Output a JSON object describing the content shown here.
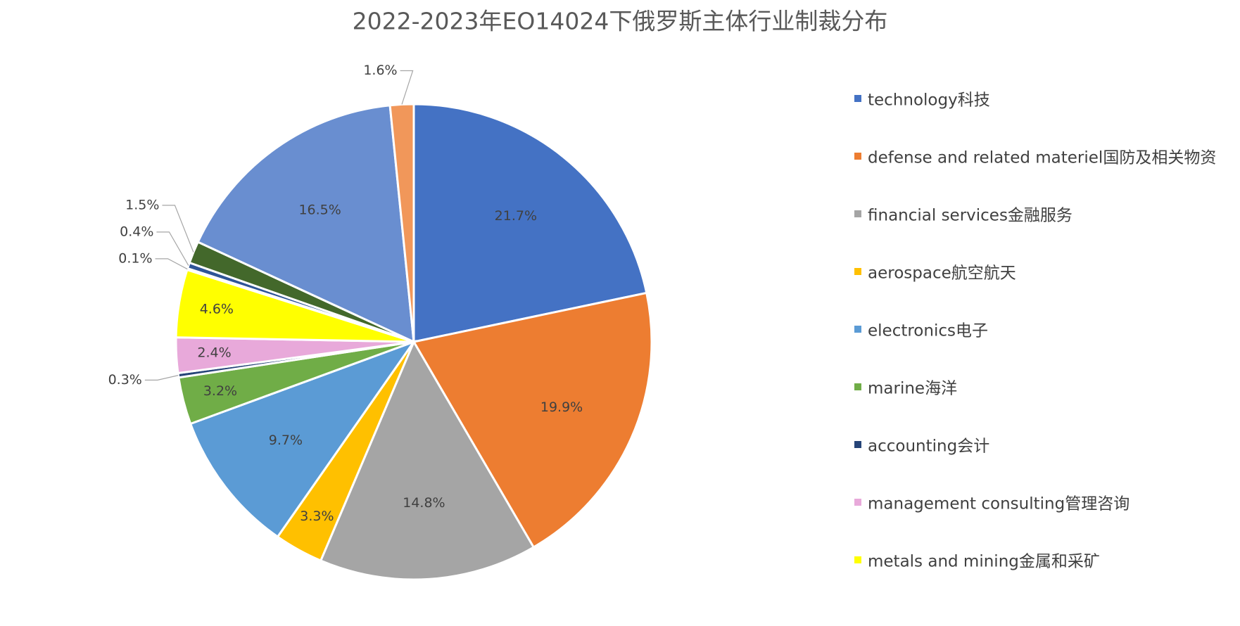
{
  "chart_data": {
    "type": "pie",
    "title": "2022-2023年EO14024下俄罗斯主体行业制裁分布",
    "categories": [
      "technology科技",
      "defense and related materiel国防及相关物资",
      "financial services金融服务",
      "aerospace航空航天",
      "electronics电子",
      "marine海洋",
      "accounting会计",
      "management consulting管理咨询",
      "metals and mining金属和采矿",
      null,
      null,
      null,
      null,
      null
    ],
    "values": [
      21.7,
      19.9,
      14.8,
      3.3,
      9.7,
      3.2,
      0.3,
      2.4,
      4.6,
      0.1,
      0.4,
      1.5,
      16.5,
      1.6
    ],
    "value_labels": [
      "21.7%",
      "19.9%",
      "14.8%",
      "3.3%",
      "9.7%",
      "3.2%",
      "0.3%",
      "2.4%",
      "4.6%",
      "0.1%",
      "0.4%",
      "1.5%",
      "16.5%",
      "1.6%"
    ],
    "colors": [
      "#4472c4",
      "#ed7d31",
      "#a5a5a5",
      "#ffc000",
      "#5b9bd5",
      "#70ad47",
      "#264478",
      "#e8a9da",
      "#ffff00",
      "#255e91",
      "#2f5597",
      "#43682b",
      "#698ed0",
      "#f1975a"
    ],
    "legend": "right"
  }
}
